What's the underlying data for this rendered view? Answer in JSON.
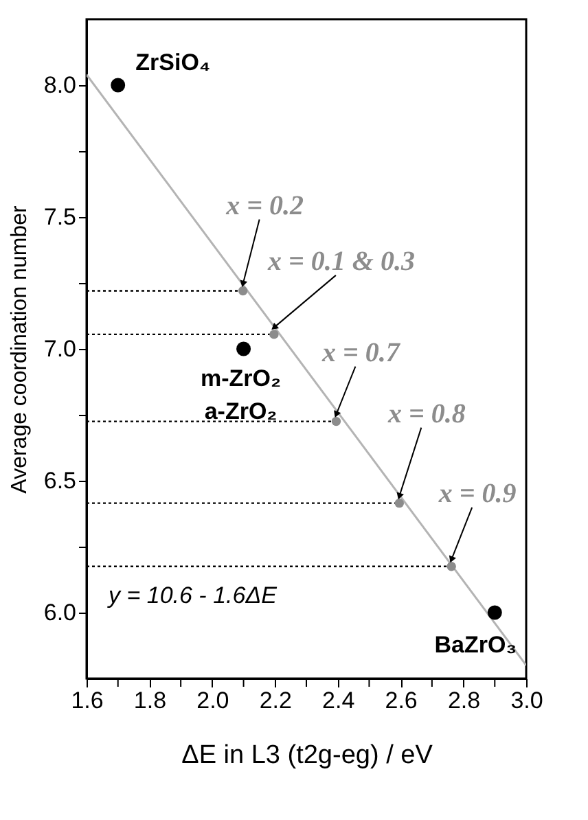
{
  "chart_data": {
    "type": "scatter",
    "xlabel": "ΔE in L3 (t2g-eg) / eV",
    "ylabel": "Average coordination number",
    "xlim": [
      1.6,
      3.0
    ],
    "ylim": [
      5.75,
      8.25
    ],
    "xticks": [
      {
        "value": 1.6,
        "label": "1.6"
      },
      {
        "value": 1.7,
        "label": null
      },
      {
        "value": 1.8,
        "label": "1.8"
      },
      {
        "value": 1.9,
        "label": null
      },
      {
        "value": 2.0,
        "label": "2.0"
      },
      {
        "value": 2.1,
        "label": null
      },
      {
        "value": 2.2,
        "label": "2.2"
      },
      {
        "value": 2.3,
        "label": null
      },
      {
        "value": 2.4,
        "label": "2.4"
      },
      {
        "value": 2.5,
        "label": null
      },
      {
        "value": 2.6,
        "label": "2.6"
      },
      {
        "value": 2.7,
        "label": null
      },
      {
        "value": 2.8,
        "label": "2.8"
      },
      {
        "value": 2.9,
        "label": null
      },
      {
        "value": 3.0,
        "label": "3.0"
      }
    ],
    "yticks": [
      {
        "value": 6.0,
        "label": "6.0"
      },
      {
        "value": 6.25,
        "label": null
      },
      {
        "value": 6.5,
        "label": "6.5"
      },
      {
        "value": 6.75,
        "label": null
      },
      {
        "value": 7.0,
        "label": "7.0"
      },
      {
        "value": 7.25,
        "label": null
      },
      {
        "value": 7.5,
        "label": "7.5"
      },
      {
        "value": 7.75,
        "label": null
      },
      {
        "value": 8.0,
        "label": "8.0"
      }
    ],
    "grid": false,
    "series": [
      {
        "type": "line",
        "line_style": "solid",
        "color": "#b4b4b4",
        "x": [
          1.6,
          3.0
        ],
        "values": [
          8.04,
          5.8
        ]
      },
      {
        "type": "line",
        "line_style": "dotted",
        "color": "#000000",
        "x": [
          1.6,
          2.098
        ],
        "values": [
          7.22,
          7.22
        ]
      },
      {
        "type": "line",
        "line_style": "dotted",
        "color": "#000000",
        "x": [
          1.6,
          2.197
        ],
        "values": [
          7.055,
          7.055
        ]
      },
      {
        "type": "line",
        "line_style": "dotted",
        "color": "#000000",
        "x": [
          1.6,
          2.395
        ],
        "values": [
          6.725,
          6.725
        ]
      },
      {
        "type": "line",
        "line_style": "dotted",
        "color": "#000000",
        "x": [
          1.6,
          2.596
        ],
        "values": [
          6.415,
          6.415
        ]
      },
      {
        "type": "line",
        "line_style": "dotted",
        "color": "#000000",
        "x": [
          1.6,
          2.762
        ],
        "values": [
          6.175,
          6.175
        ]
      },
      {
        "type": "scatter",
        "marker": "circle",
        "color": "#8c8c8c",
        "x": [
          2.098,
          2.197,
          2.395,
          2.596,
          2.762
        ],
        "values": [
          7.22,
          7.055,
          6.725,
          6.415,
          6.175
        ]
      },
      {
        "type": "scatter",
        "marker": "circle",
        "color": "#000000",
        "x": [
          1.7,
          2.1,
          2.9
        ],
        "values": [
          8.0,
          7.0,
          6.0
        ]
      }
    ],
    "annotations": [
      {
        "text": "ZrSiO₄",
        "x": 1.7,
        "y": 8.0
      },
      {
        "text": "m-ZrO₂",
        "x": 2.1,
        "y": 7.0
      },
      {
        "text": "a-ZrO₂",
        "x": 2.1,
        "y": 7.0
      },
      {
        "text": "BaZrO₃",
        "x": 2.9,
        "y": 6.0
      },
      {
        "text": "x = 0.2",
        "x": 2.098,
        "y": 7.22
      },
      {
        "text": "x = 0.1 & 0.3",
        "x": 2.197,
        "y": 7.055
      },
      {
        "text": "x = 0.7",
        "x": 2.395,
        "y": 6.725
      },
      {
        "text": "x = 0.8",
        "x": 2.596,
        "y": 6.415
      },
      {
        "text": "x = 0.9",
        "x": 2.762,
        "y": 6.175
      },
      "y = 10.6 - 1.6ΔE"
    ]
  }
}
